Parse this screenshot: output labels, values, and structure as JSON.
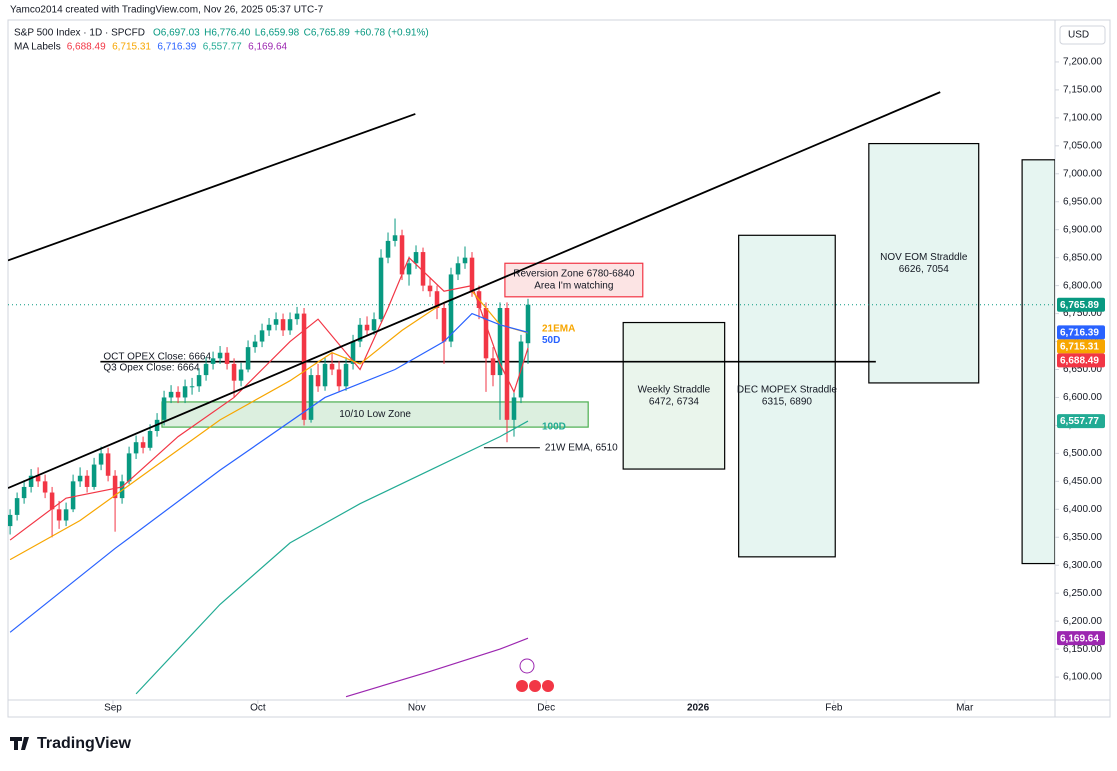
{
  "header": {
    "credit": "Yamco2014 created with TradingView.com, Nov 26, 2025 05:37 UTC-7",
    "symbol": "S&P 500 Index · 1D · SPCFD",
    "quote": [
      "O6,697.03",
      "H6,776.40",
      "L6,659.98",
      "C6,765.89",
      "+60.78 (+0.91%)"
    ],
    "ma_title": "MA Labels",
    "currency": "USD"
  },
  "footer": {
    "brand": "TradingView"
  },
  "chart_data": {
    "type": "candlestick",
    "xlim": [
      -0.3,
      149.3
    ],
    "ylim": [
      6059,
      7275
    ],
    "xticks": [
      {
        "value": 14.7,
        "label": "Sep"
      },
      {
        "value": 35.4,
        "label": "Oct"
      },
      {
        "value": 58.1,
        "label": "Nov"
      },
      {
        "value": 76.6,
        "label": "Dec"
      },
      {
        "value": 98.3,
        "label": "2026"
      },
      {
        "value": 117.7,
        "label": "Feb"
      },
      {
        "value": 136.4,
        "label": "Mar"
      }
    ],
    "yticks": [
      {
        "value": 6100,
        "label": "6,100.00"
      },
      {
        "value": 6150,
        "label": "6,150.00"
      },
      {
        "value": 6200,
        "label": "6,200.00"
      },
      {
        "value": 6250,
        "label": "6,250.00"
      },
      {
        "value": 6300,
        "label": "6,300.00"
      },
      {
        "value": 6350,
        "label": "6,350.00"
      },
      {
        "value": 6400,
        "label": "6,400.00"
      },
      {
        "value": 6450,
        "label": "6,450.00"
      },
      {
        "value": 6500,
        "label": "6,500.00"
      },
      {
        "value": 6550,
        "label": "6,550.00"
      },
      {
        "value": 6600,
        "label": "6,600.00"
      },
      {
        "value": 6650,
        "label": "6,650.00"
      },
      {
        "value": 6700,
        "label": "6,700.00"
      },
      {
        "value": 6750,
        "label": "6,750.00"
      },
      {
        "value": 6800,
        "label": "6,800.00"
      },
      {
        "value": 6850,
        "label": "6,850.00"
      },
      {
        "value": 6900,
        "label": "6,900.00"
      },
      {
        "value": 6950,
        "label": "6,950.00"
      },
      {
        "value": 7000,
        "label": "7,000.00"
      },
      {
        "value": 7050,
        "label": "7,050.00"
      },
      {
        "value": 7100,
        "label": "7,100.00"
      },
      {
        "value": 7150,
        "label": "7,150.00"
      },
      {
        "value": 7200,
        "label": "7,200.00"
      }
    ],
    "up_color": "#089981",
    "down_color": "#f23645",
    "candles": [
      [
        6370,
        6400,
        6355,
        6390
      ],
      [
        6390,
        6430,
        6380,
        6420
      ],
      [
        6420,
        6452,
        6410,
        6440
      ],
      [
        6440,
        6472,
        6430,
        6460
      ],
      [
        6460,
        6475,
        6440,
        6450
      ],
      [
        6450,
        6462,
        6420,
        6430
      ],
      [
        6430,
        6440,
        6350,
        6400
      ],
      [
        6400,
        6415,
        6365,
        6380
      ],
      [
        6380,
        6412,
        6370,
        6400
      ],
      [
        6400,
        6462,
        6395,
        6450
      ],
      [
        6450,
        6475,
        6440,
        6460
      ],
      [
        6460,
        6470,
        6430,
        6440
      ],
      [
        6440,
        6492,
        6435,
        6480
      ],
      [
        6480,
        6512,
        6470,
        6500
      ],
      [
        6500,
        6510,
        6450,
        6460
      ],
      [
        6460,
        6470,
        6360,
        6420
      ],
      [
        6420,
        6462,
        6410,
        6450
      ],
      [
        6450,
        6512,
        6445,
        6500
      ],
      [
        6500,
        6532,
        6490,
        6520
      ],
      [
        6520,
        6530,
        6500,
        6510
      ],
      [
        6510,
        6552,
        6505,
        6540
      ],
      [
        6540,
        6572,
        6530,
        6560
      ],
      [
        6560,
        6612,
        6550,
        6600
      ],
      [
        6600,
        6622,
        6590,
        6610
      ],
      [
        6610,
        6620,
        6590,
        6600
      ],
      [
        6600,
        6632,
        6590,
        6620
      ],
      [
        6620,
        6635,
        6605,
        6620
      ],
      [
        6620,
        6652,
        6610,
        6640
      ],
      [
        6640,
        6672,
        6630,
        6660
      ],
      [
        6660,
        6682,
        6650,
        6670
      ],
      [
        6670,
        6692,
        6660,
        6680
      ],
      [
        6680,
        6690,
        6650,
        6660
      ],
      [
        6660,
        6670,
        6600,
        6630
      ],
      [
        6630,
        6662,
        6620,
        6650
      ],
      [
        6650,
        6702,
        6645,
        6690
      ],
      [
        6690,
        6712,
        6680,
        6700
      ],
      [
        6700,
        6732,
        6690,
        6720
      ],
      [
        6720,
        6742,
        6710,
        6730
      ],
      [
        6730,
        6752,
        6720,
        6740
      ],
      [
        6740,
        6750,
        6710,
        6720
      ],
      [
        6720,
        6752,
        6712,
        6740
      ],
      [
        6740,
        6762,
        6730,
        6750
      ],
      [
        6750,
        6760,
        6550,
        6560
      ],
      [
        6560,
        6652,
        6555,
        6640
      ],
      [
        6640,
        6660,
        6610,
        6620
      ],
      [
        6620,
        6672,
        6612,
        6660
      ],
      [
        6660,
        6680,
        6640,
        6650
      ],
      [
        6650,
        6665,
        6610,
        6620
      ],
      [
        6620,
        6672,
        6612,
        6660
      ],
      [
        6660,
        6712,
        6650,
        6700
      ],
      [
        6700,
        6742,
        6690,
        6730
      ],
      [
        6730,
        6745,
        6710,
        6720
      ],
      [
        6720,
        6752,
        6712,
        6740
      ],
      [
        6740,
        6865,
        6735,
        6850
      ],
      [
        6850,
        6895,
        6840,
        6880
      ],
      [
        6880,
        6920,
        6870,
        6890
      ],
      [
        6890,
        6900,
        6810,
        6820
      ],
      [
        6820,
        6852,
        6800,
        6840
      ],
      [
        6840,
        6872,
        6830,
        6860
      ],
      [
        6860,
        6868,
        6790,
        6800
      ],
      [
        6800,
        6815,
        6780,
        6790
      ],
      [
        6790,
        6800,
        6740,
        6760
      ],
      [
        6760,
        6770,
        6660,
        6700
      ],
      [
        6700,
        6832,
        6690,
        6820
      ],
      [
        6820,
        6852,
        6810,
        6840
      ],
      [
        6840,
        6870,
        6830,
        6850
      ],
      [
        6850,
        6860,
        6780,
        6790
      ],
      [
        6790,
        6800,
        6740,
        6760
      ],
      [
        6760,
        6770,
        6610,
        6670
      ],
      [
        6670,
        6690,
        6620,
        6640
      ],
      [
        6640,
        6770,
        6560,
        6760
      ],
      [
        6760,
        6770,
        6520,
        6560
      ],
      [
        6560,
        6612,
        6530,
        6600
      ],
      [
        6600,
        6712,
        6590,
        6700
      ],
      [
        6697.03,
        6776.4,
        6659.98,
        6765.89
      ]
    ],
    "last_price": {
      "value": 6765.89,
      "label": "6,765.89"
    },
    "series": [
      {
        "name": "6,688.49",
        "color": "#f23645",
        "x": [
          0,
          8,
          16,
          24,
          32,
          40,
          44,
          50,
          54,
          57,
          62,
          66,
          70,
          72,
          74
        ],
        "values": [
          6345,
          6420,
          6440,
          6530,
          6600,
          6700,
          6740,
          6650,
          6760,
          6850,
          6790,
          6800,
          6660,
          6610,
          6688.49
        ]
      },
      {
        "name": "6,715.31",
        "color": "#f7a600",
        "tag": "21EMA",
        "x": [
          0,
          10,
          20,
          30,
          40,
          46,
          50,
          56,
          62,
          66,
          70,
          74
        ],
        "values": [
          6310,
          6380,
          6470,
          6560,
          6630,
          6680,
          6660,
          6720,
          6770,
          6790,
          6730,
          6715.31
        ]
      },
      {
        "name": "6,716.39",
        "color": "#2962ff",
        "tag": "50D",
        "x": [
          0,
          15,
          30,
          45,
          55,
          62,
          66,
          70,
          74
        ],
        "values": [
          6180,
          6330,
          6470,
          6600,
          6650,
          6700,
          6750,
          6730,
          6716.39
        ]
      },
      {
        "name": "6,557.77",
        "color": "#22ab94",
        "tag": "100D",
        "x": [
          18,
          30,
          40,
          50,
          60,
          70,
          74
        ],
        "values": [
          6070,
          6230,
          6340,
          6410,
          6470,
          6530,
          6557.77
        ]
      },
      {
        "name": "6,169.64",
        "color": "#9c27b0",
        "x": [
          48,
          60,
          70,
          74
        ],
        "values": [
          6065,
          6110,
          6150,
          6169.64
        ]
      }
    ],
    "trend_lines": [
      {
        "x": [
          -0.3,
          57.9
        ],
        "y": [
          6845,
          7107
        ]
      },
      {
        "x": [
          -0.3,
          132.9
        ],
        "y": [
          6438,
          7146
        ]
      }
    ],
    "h_lines": [
      {
        "value": 6664,
        "x": [
          12.9,
          123.7
        ],
        "labels": [
          "OCT OPEX Close: 6664",
          "Q3 Opex Close: 6664"
        ]
      },
      {
        "value": 6510,
        "x": [
          67.7,
          75.7
        ],
        "labels": [
          "21W EMA, 6510"
        ]
      }
    ],
    "boxes": [
      {
        "x": [
          87.6,
          102.1
        ],
        "low": 6472,
        "high": 6734,
        "fill": "#eaf5ec",
        "stroke": "#000000",
        "labels": [
          "Weekly Straddle",
          "6472, 6734"
        ]
      },
      {
        "x": [
          104.1,
          117.9
        ],
        "low": 6315,
        "high": 6890,
        "fill": "#e6f5f1",
        "stroke": "#000000",
        "labels": [
          "DEC MOPEX Straddle",
          "6315, 6890"
        ]
      },
      {
        "x": [
          122.7,
          138.4
        ],
        "low": 6626,
        "high": 7054,
        "fill": "#e6f5f1",
        "stroke": "#000000",
        "labels": [
          "NOV EOM Straddle",
          "6626, 7054"
        ]
      },
      {
        "x": [
          144.6,
          149.3
        ],
        "low": 6303,
        "high": 7025,
        "fill": "#e6f5f1",
        "stroke": "#000000",
        "labels": []
      },
      {
        "x": [
          70.7,
          90.4
        ],
        "low": 6780,
        "high": 6840,
        "fill": "#fce4e4",
        "stroke": "#f23645",
        "labels": [
          "Reversion Zone 6780-6840",
          "Area I'm watching"
        ]
      },
      {
        "x": [
          21.7,
          82.6
        ],
        "low": 6547,
        "high": 6592,
        "fill": "#dcefdf",
        "stroke": "#4caf50",
        "labels": [
          "10/10 Low Zone"
        ]
      }
    ]
  }
}
